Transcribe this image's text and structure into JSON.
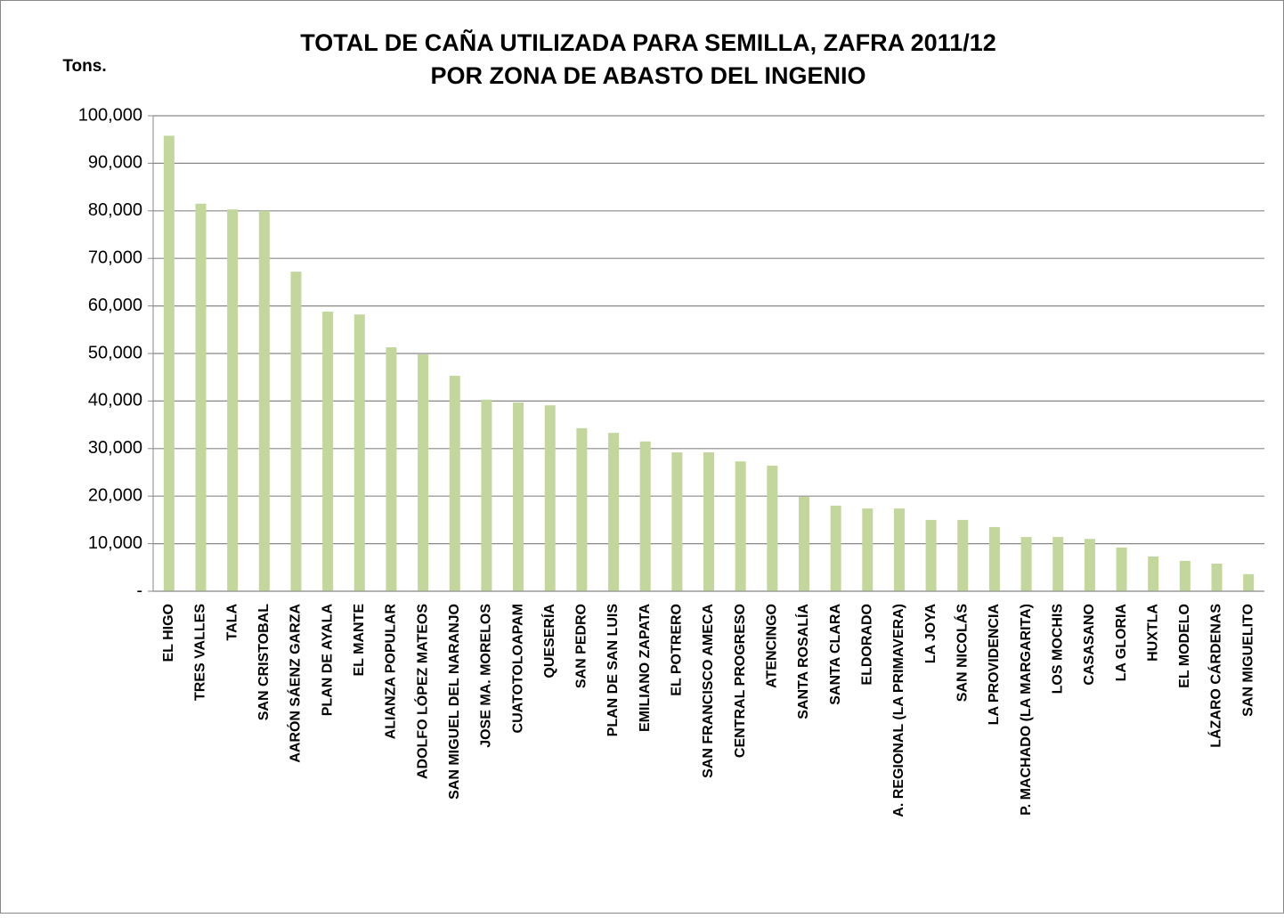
{
  "chart_data": {
    "type": "bar",
    "title": [
      "TOTAL DE CAÑA UTILIZADA PARA SEMILLA, ZAFRA 2011/12",
      "POR ZONA DE ABASTO DEL INGENIO"
    ],
    "y_label": "Tons.",
    "categories": [
      "EL HIGO",
      "TRES VALLES",
      "TALA",
      "SAN CRISTOBAL",
      "AARÓN SÁENZ GARZA",
      "PLAN DE AYALA",
      "EL MANTE",
      "ALIANZA POPULAR",
      "ADOLFO LÓPEZ MATEOS",
      "SAN MIGUEL DEL NARANJO",
      "JOSE MA. MORELOS",
      "CUATOTOLOAPAM",
      "QUESERÍA",
      "SAN PEDRO",
      "PLAN DE SAN LUIS",
      "EMILIANO ZAPATA",
      "EL POTRERO",
      "SAN FRANCISCO AMECA",
      "CENTRAL PROGRESO",
      "ATENCINGO",
      "SANTA ROSALÍA",
      "SANTA CLARA",
      "ELDORADO",
      "A. REGIONAL (LA PRIMAVERA)",
      "LA JOYA",
      "SAN NICOLÁS",
      "LA PROVIDENCIA",
      "P. MACHADO (LA MARGARITA)",
      "LOS MOCHIS",
      "CASASANO",
      "LA GLORIA",
      "HUXTLA",
      "EL MODELO",
      "LÁZARO CÁRDENAS",
      "SAN MIGUELITO"
    ],
    "values": [
      95800,
      81500,
      80300,
      80000,
      67200,
      58800,
      58200,
      51300,
      49800,
      45300,
      40300,
      39700,
      39100,
      34300,
      33300,
      31500,
      29200,
      29200,
      27300,
      26400,
      19900,
      18000,
      17400,
      17400,
      15000,
      15000,
      13500,
      11400,
      11400,
      11000,
      9200,
      7300,
      6400,
      5800,
      3600
    ],
    "color": "#c3d69b",
    "ylim": [
      0,
      100000
    ],
    "yticks": [
      {
        "value": 0,
        "label": "-"
      },
      {
        "value": 10000,
        "label": "10,000"
      },
      {
        "value": 20000,
        "label": "20,000"
      },
      {
        "value": 30000,
        "label": "30,000"
      },
      {
        "value": 40000,
        "label": "40,000"
      },
      {
        "value": 50000,
        "label": "50,000"
      },
      {
        "value": 60000,
        "label": "60,000"
      },
      {
        "value": 70000,
        "label": "70,000"
      },
      {
        "value": 80000,
        "label": "80,000"
      },
      {
        "value": 90000,
        "label": "90,000"
      },
      {
        "value": 100000,
        "label": "100,000"
      }
    ],
    "grid": true
  }
}
